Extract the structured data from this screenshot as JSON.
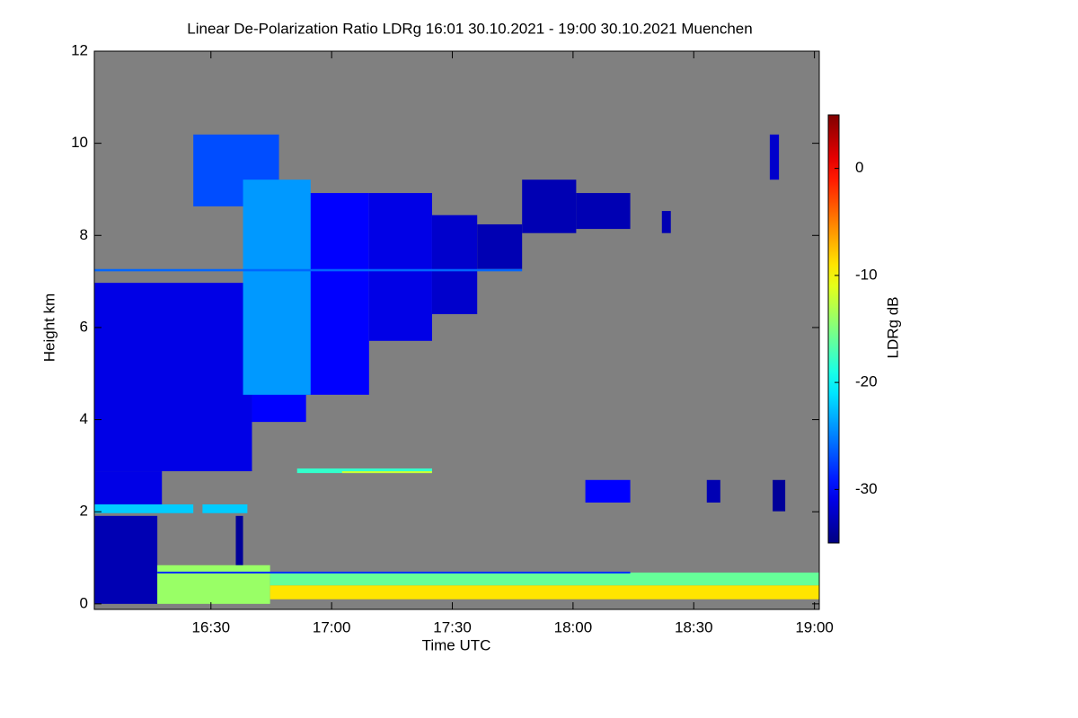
{
  "chart_data": {
    "type": "heatmap",
    "title": "Linear De-Polarization Ratio LDRg   16:01 30.10.2021 - 19:00 30.10.2021 Muenchen",
    "x_label": "Time UTC",
    "y_label": "Height km",
    "colorbar_label": "LDRg dB",
    "colormap": "jet",
    "background": "#808080",
    "xlim": [
      16.017,
      19.02
    ],
    "xticks": [
      {
        "value": 16.5,
        "label": "16:30"
      },
      {
        "value": 17,
        "label": "17:00"
      },
      {
        "value": 17.5,
        "label": "17:30"
      },
      {
        "value": 18,
        "label": "18:00"
      },
      {
        "value": 18.5,
        "label": "18:30"
      },
      {
        "value": 19,
        "label": "19:00"
      }
    ],
    "ylim": [
      -0.12,
      12
    ],
    "yticks": [
      0,
      2,
      4,
      6,
      8,
      10,
      12
    ],
    "clim": [
      -35,
      5
    ],
    "cticks": [
      -30,
      -20,
      -10,
      0
    ],
    "cells": [
      {
        "t0": 16.017,
        "t1": 16.67,
        "h0": 2.88,
        "h1": 6.97,
        "value": -31
      },
      {
        "t0": 16.017,
        "t1": 16.297,
        "h0": 2.1,
        "h1": 2.88,
        "value": -31
      },
      {
        "t0": 16.017,
        "t1": 16.278,
        "h0": 0,
        "h1": 1.91,
        "value": -33
      },
      {
        "t0": 16.67,
        "t1": 16.894,
        "h0": 3.95,
        "h1": 8.63,
        "value": -30
      },
      {
        "t0": 16.427,
        "t1": 16.782,
        "h0": 8.63,
        "h1": 10.19,
        "value": -27
      },
      {
        "t0": 16.894,
        "t1": 17.155,
        "h0": 4.54,
        "h1": 8.92,
        "value": -30
      },
      {
        "t0": 17.155,
        "t1": 17.416,
        "h0": 5.71,
        "h1": 8.92,
        "value": -31
      },
      {
        "t0": 17.416,
        "t1": 17.603,
        "h0": 6.29,
        "h1": 8.44,
        "value": -32
      },
      {
        "t0": 17.603,
        "t1": 17.789,
        "h0": 7.27,
        "h1": 8.24,
        "value": -33
      },
      {
        "t0": 17.789,
        "t1": 18.013,
        "h0": 8.05,
        "h1": 9.21,
        "value": -33
      },
      {
        "t0": 16.633,
        "t1": 16.913,
        "h0": 4.54,
        "h1": 9.21,
        "value": -24
      },
      {
        "t0": 16.017,
        "t1": 17.789,
        "h0": 7.22,
        "h1": 7.27,
        "value": -26
      },
      {
        "t0": 16.017,
        "t1": 16.427,
        "h0": 1.97,
        "h1": 2.16,
        "value": -22
      },
      {
        "t0": 16.465,
        "t1": 16.651,
        "h0": 1.97,
        "h1": 2.16,
        "value": -22
      },
      {
        "t0": 16.603,
        "t1": 16.633,
        "h0": 0.55,
        "h1": 1.91,
        "value": -34
      },
      {
        "t0": 18.013,
        "t1": 18.237,
        "h0": 8.14,
        "h1": 8.92,
        "value": -33
      },
      {
        "t0": 18.368,
        "t1": 18.405,
        "h0": 8.05,
        "h1": 8.53,
        "value": -33
      },
      {
        "t0": 18.815,
        "t1": 18.853,
        "h0": 9.21,
        "h1": 10.19,
        "value": -32
      },
      {
        "t0": 18.827,
        "t1": 18.879,
        "h0": 2.01,
        "h1": 2.69,
        "value": -34
      },
      {
        "t0": 18.554,
        "t1": 18.61,
        "h0": 2.2,
        "h1": 2.69,
        "value": -33
      },
      {
        "t0": 18.051,
        "t1": 18.237,
        "h0": 2.2,
        "h1": 2.69,
        "value": -30
      },
      {
        "t0": 16.857,
        "t1": 17.416,
        "h0": 2.84,
        "h1": 2.94,
        "value": -18
      },
      {
        "t0": 17.043,
        "t1": 17.416,
        "h0": 2.84,
        "h1": 2.88,
        "value": -12
      },
      {
        "t0": 16.278,
        "t1": 16.745,
        "h0": 0,
        "h1": 0.84,
        "value": -14
      },
      {
        "t0": 16.745,
        "t1": 19.02,
        "h0": 0.4,
        "h1": 0.68,
        "value": -16
      },
      {
        "t0": 16.745,
        "t1": 19.02,
        "h0": 0.1,
        "h1": 0.4,
        "value": -9
      },
      {
        "t0": 16.278,
        "t1": 18.237,
        "h0": 0.66,
        "h1": 0.7,
        "value": -28
      }
    ]
  }
}
